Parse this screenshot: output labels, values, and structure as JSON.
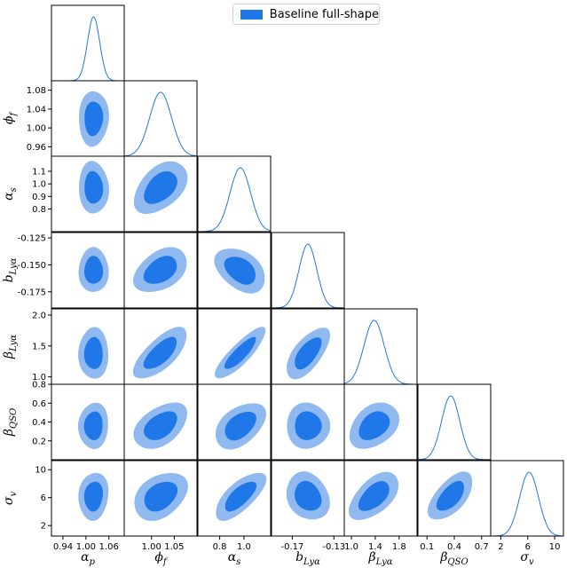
{
  "chart_data": {
    "type": "corner-contour",
    "legend": {
      "label": "Baseline full-shape",
      "color": "#1f77e8"
    },
    "colors": {
      "inner": "#1f77e8",
      "outer": "#8fb9ef",
      "line": "#1f77e8",
      "frame": "#000000"
    },
    "parameters": [
      {
        "name": "alpha_p",
        "label": "α_p",
        "range": [
          0.91,
          1.1
        ],
        "mean": 1.02,
        "sigma": 0.016,
        "xticks": [
          "0.94",
          "1.00",
          "1.06"
        ],
        "xtick_values": [
          0.94,
          1.0,
          1.06
        ]
      },
      {
        "name": "phi_f",
        "label": "ϕ_f",
        "range": [
          0.94,
          1.1
        ],
        "mean": 1.02,
        "sigma": 0.024,
        "xticks": [
          "1.00",
          "1.05"
        ],
        "xtick_values": [
          1.0,
          1.05
        ],
        "yticks": [
          "0.96",
          "1.00",
          "1.04",
          "1.08"
        ],
        "ytick_values": [
          0.96,
          1.0,
          1.04,
          1.08
        ]
      },
      {
        "name": "alpha_s",
        "label": "α_s",
        "range": [
          0.62,
          1.22
        ],
        "mean": 0.97,
        "sigma": 0.085,
        "xticks": [
          "0.8",
          "1.0"
        ],
        "xtick_values": [
          0.8,
          1.0
        ],
        "yticks": [
          "0.8",
          "0.9",
          "1.0",
          "1.1"
        ],
        "ytick_values": [
          0.8,
          0.9,
          1.0,
          1.1
        ]
      },
      {
        "name": "b_Lya",
        "label": "b_Lyα",
        "range": [
          -0.19,
          -0.12
        ],
        "mean": -0.155,
        "sigma": 0.0085,
        "xticks": [
          "-0.17",
          "-0.13"
        ],
        "xtick_values": [
          -0.17,
          -0.13
        ],
        "yticks": [
          "-0.125",
          "-0.150",
          "-0.175"
        ],
        "ytick_values": [
          -0.125,
          -0.15,
          -0.175
        ]
      },
      {
        "name": "beta_Lya",
        "label": "β_Lyα",
        "range": [
          0.88,
          2.1
        ],
        "mean": 1.38,
        "sigma": 0.17,
        "xticks": [
          "1.0",
          "1.4",
          "1.8"
        ],
        "xtick_values": [
          1.0,
          1.4,
          1.8
        ],
        "yticks": [
          "1.0",
          "1.5",
          "2.0"
        ],
        "ytick_values": [
          1.0,
          1.5,
          2.0
        ]
      },
      {
        "name": "beta_QSO",
        "label": "β_QSO",
        "range": [
          0.0,
          0.8
        ],
        "mean": 0.36,
        "sigma": 0.1,
        "xticks": [
          "0.1",
          "0.4",
          "0.7"
        ],
        "xtick_values": [
          0.1,
          0.4,
          0.7
        ],
        "yticks": [
          "0.2",
          "0.4",
          "0.6",
          "0.8"
        ],
        "ytick_values": [
          0.2,
          0.4,
          0.6,
          0.8
        ]
      },
      {
        "name": "sigma_v",
        "label": "σ_v",
        "range": [
          0.5,
          11.3
        ],
        "mean": 6.2,
        "sigma": 1.4,
        "xticks": [
          "2",
          "6",
          "10"
        ],
        "xtick_values": [
          2,
          6,
          10
        ],
        "yticks": [
          "2",
          "6",
          "10"
        ],
        "ytick_values": [
          2,
          6,
          10
        ]
      }
    ],
    "correlations": {
      "1-0": 0.05,
      "2-0": -0.05,
      "2-1": 0.45,
      "3-0": 0.0,
      "3-1": 0.4,
      "3-2": -0.4,
      "4-0": 0.0,
      "4-1": 0.7,
      "4-2": 0.85,
      "4-3": 0.65,
      "5-0": 0.05,
      "5-1": 0.45,
      "5-2": 0.45,
      "5-3": 0.0,
      "5-4": 0.35,
      "6-0": 0.1,
      "6-1": 0.35,
      "6-2": 0.7,
      "6-3": -0.2,
      "6-4": 0.55,
      "6-5": 0.6
    }
  }
}
